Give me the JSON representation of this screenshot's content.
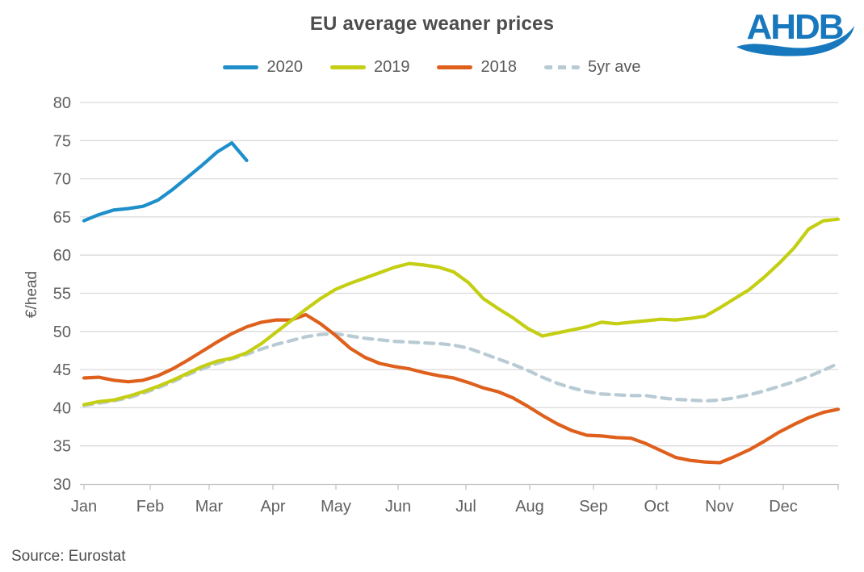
{
  "title": "EU average weaner prices",
  "source": "Source: Eurostat",
  "logo": {
    "text": "AHDB",
    "color": "#1878BE"
  },
  "legend": [
    {
      "label": "2020",
      "color": "#1E8FCB",
      "dash": false
    },
    {
      "label": "2019",
      "color": "#C4CE12",
      "dash": false
    },
    {
      "label": "2018",
      "color": "#DE601C",
      "dash": false
    },
    {
      "label": "5yr ave",
      "color": "#B8CAD3",
      "dash": true
    }
  ],
  "chart_data": {
    "type": "line",
    "title": "EU average weaner prices",
    "xlabel": "",
    "ylabel": "€/head",
    "x_unit": "week of year",
    "x_tick_labels": [
      "Jan",
      "Feb",
      "Mar",
      "Apr",
      "May",
      "Jun",
      "Jul",
      "Aug",
      "Sep",
      "Oct",
      "Nov",
      "Dec"
    ],
    "yticks": [
      30,
      35,
      40,
      45,
      50,
      55,
      60,
      65,
      70,
      75,
      80
    ],
    "ylim": [
      30,
      80
    ],
    "grid": true,
    "legend_position": "top",
    "series": [
      {
        "name": "2020",
        "color": "#1E8FCB",
        "dashed": false,
        "values": [
          64.5,
          65.3,
          65.9,
          66.1,
          66.4,
          67.2,
          68.6,
          70.2,
          71.8,
          73.5,
          74.7,
          72.4
        ]
      },
      {
        "name": "2019",
        "color": "#C4CE12",
        "dashed": false,
        "values": [
          40.4,
          40.8,
          41.0,
          41.5,
          42.1,
          42.8,
          43.6,
          44.5,
          45.4,
          46.1,
          46.5,
          47.2,
          48.4,
          49.9,
          51.4,
          52.9,
          54.3,
          55.5,
          56.3,
          57.0,
          57.7,
          58.4,
          58.9,
          58.7,
          58.4,
          57.8,
          56.4,
          54.3,
          53.0,
          51.8,
          50.4,
          49.4,
          49.8,
          50.2,
          50.6,
          51.2,
          51.0,
          51.2,
          51.4,
          51.6,
          51.5,
          51.7,
          52.0,
          53.1,
          54.3,
          55.5,
          57.1,
          58.9,
          60.9,
          63.4,
          64.5,
          64.7
        ]
      },
      {
        "name": "2018",
        "color": "#DE601C",
        "dashed": false,
        "values": [
          43.9,
          44.0,
          43.6,
          43.4,
          43.6,
          44.2,
          45.1,
          46.2,
          47.4,
          48.6,
          49.7,
          50.6,
          51.2,
          51.5,
          51.5,
          52.2,
          51.0,
          49.5,
          47.8,
          46.6,
          45.8,
          45.4,
          45.1,
          44.6,
          44.2,
          43.9,
          43.3,
          42.6,
          42.1,
          41.3,
          40.2,
          39.0,
          37.9,
          37.0,
          36.4,
          36.3,
          36.1,
          36.0,
          35.3,
          34.4,
          33.5,
          33.1,
          32.9,
          32.8,
          33.6,
          34.5,
          35.6,
          36.8,
          37.8,
          38.7,
          39.4,
          39.8
        ]
      },
      {
        "name": "5yr ave",
        "color": "#B8CAD3",
        "dashed": true,
        "values": [
          40.3,
          40.6,
          40.9,
          41.3,
          41.9,
          42.6,
          43.4,
          44.3,
          45.1,
          45.8,
          46.4,
          47.0,
          47.7,
          48.3,
          48.8,
          49.3,
          49.6,
          49.7,
          49.4,
          49.1,
          48.9,
          48.7,
          48.6,
          48.5,
          48.4,
          48.2,
          47.8,
          47.1,
          46.4,
          45.7,
          44.9,
          44.0,
          43.2,
          42.6,
          42.1,
          41.8,
          41.7,
          41.6,
          41.6,
          41.3,
          41.1,
          41.0,
          40.9,
          41.0,
          41.3,
          41.7,
          42.2,
          42.8,
          43.4,
          44.1,
          44.9,
          45.8
        ]
      }
    ]
  }
}
